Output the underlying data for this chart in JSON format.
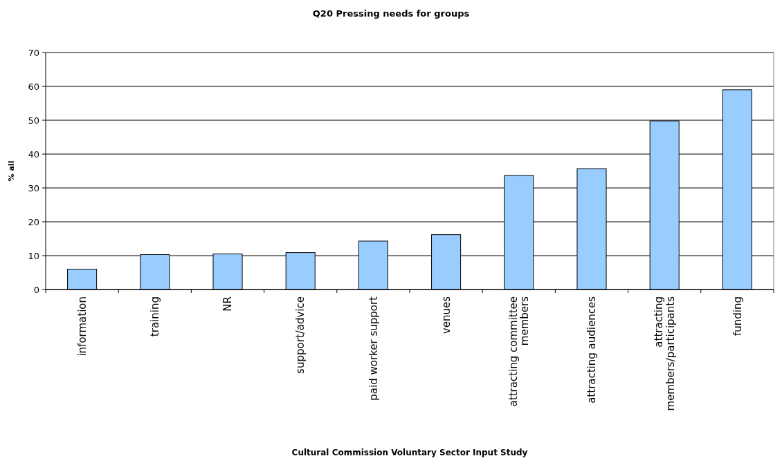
{
  "chart_data": {
    "type": "bar",
    "title": "Q20 Pressing needs for groups",
    "xlabel": "Cultural Commission Voluntary Sector Input Study",
    "ylabel": "% all",
    "categories": [
      "information",
      "training",
      "NR",
      "support/advice",
      "paid worker support",
      "venues",
      "attracting committee members",
      "attracting audiences",
      "attracting members/participants",
      "funding"
    ],
    "values": [
      6,
      10.3,
      10.5,
      10.9,
      14.3,
      16.2,
      33.7,
      35.7,
      49.8,
      59.0
    ],
    "color": "#99ccff",
    "ylim": [
      0,
      70
    ],
    "yticks": [
      0,
      10,
      20,
      30,
      40,
      50,
      60,
      70
    ],
    "grid": "y"
  }
}
